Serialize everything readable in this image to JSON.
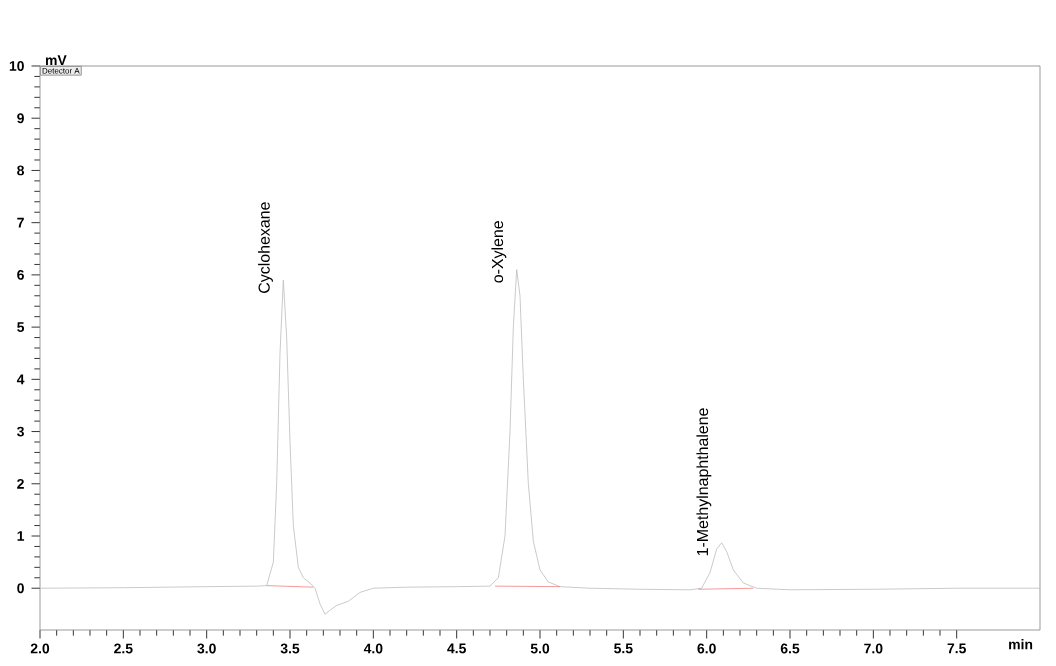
{
  "chart_data": {
    "type": "line",
    "xlabel": "min",
    "ylabel": "mV",
    "xlim": [
      2.0,
      8.0
    ],
    "xticks": [
      {
        "value": 2.0,
        "label": "2.0"
      },
      2.5,
      {
        "value": 3.0,
        "label": "3.0"
      },
      3.5,
      {
        "value": 4.0,
        "label": "4.0"
      },
      4.5,
      {
        "value": 5.0,
        "label": "5.0"
      },
      5.5,
      {
        "value": 6.0,
        "label": "6.0"
      },
      6.5,
      {
        "value": 7.0,
        "label": "7.0"
      },
      7.5
    ],
    "ylim": [
      -0.8,
      10
    ],
    "yticks": [
      0,
      1,
      2,
      3,
      4,
      5,
      6,
      7,
      8,
      9,
      10
    ],
    "grid": false,
    "marker": "none",
    "line_style": "solid",
    "series": [
      {
        "color": "#bdbdbd",
        "x": [
          2.0,
          2.5,
          3.0,
          3.3,
          3.36,
          3.4,
          3.42,
          3.44,
          3.46,
          3.48,
          3.5,
          3.52,
          3.55,
          3.58,
          3.62,
          3.65,
          3.68,
          3.71,
          3.74,
          3.78,
          3.85,
          3.92,
          4.0,
          4.2,
          4.5,
          4.7,
          4.75,
          4.79,
          4.82,
          4.84,
          4.86,
          4.88,
          4.9,
          4.93,
          4.96,
          5.0,
          5.05,
          5.12,
          5.3,
          5.6,
          5.9,
          5.97,
          6.02,
          6.06,
          6.09,
          6.12,
          6.16,
          6.22,
          6.3,
          6.5,
          7.0,
          7.5,
          8.0
        ],
        "values": [
          0.0,
          0.01,
          0.03,
          0.04,
          0.05,
          0.5,
          2.0,
          4.5,
          5.9,
          4.8,
          2.8,
          1.2,
          0.4,
          0.2,
          0.1,
          0.0,
          -0.3,
          -0.5,
          -0.42,
          -0.33,
          -0.25,
          -0.08,
          0.0,
          0.02,
          0.03,
          0.04,
          0.2,
          1.0,
          3.0,
          5.0,
          6.1,
          5.6,
          4.0,
          2.0,
          0.9,
          0.35,
          0.12,
          0.03,
          0.0,
          -0.02,
          -0.03,
          0.0,
          0.3,
          0.75,
          0.87,
          0.7,
          0.35,
          0.1,
          0.0,
          -0.03,
          -0.02,
          0.0,
          0.0
        ]
      },
      {
        "color": "#f08080",
        "x": [
          3.36,
          3.64
        ],
        "values": [
          0.05,
          0.02
        ]
      },
      {
        "color": "#f08080",
        "x": [
          4.73,
          5.12
        ],
        "values": [
          0.04,
          0.03
        ]
      },
      {
        "color": "#f08080",
        "x": [
          5.95,
          6.28
        ],
        "values": [
          -0.02,
          0.0
        ]
      }
    ],
    "annotations": [
      "Detector A",
      {
        "text": "Cyclohexane",
        "x": 3.46,
        "y": 5.9
      },
      {
        "text": "o-Xylene",
        "x": 4.86,
        "y": 6.1
      },
      {
        "text": "1-Methylnaphthalene",
        "x": 6.09,
        "y": 0.87
      }
    ]
  }
}
